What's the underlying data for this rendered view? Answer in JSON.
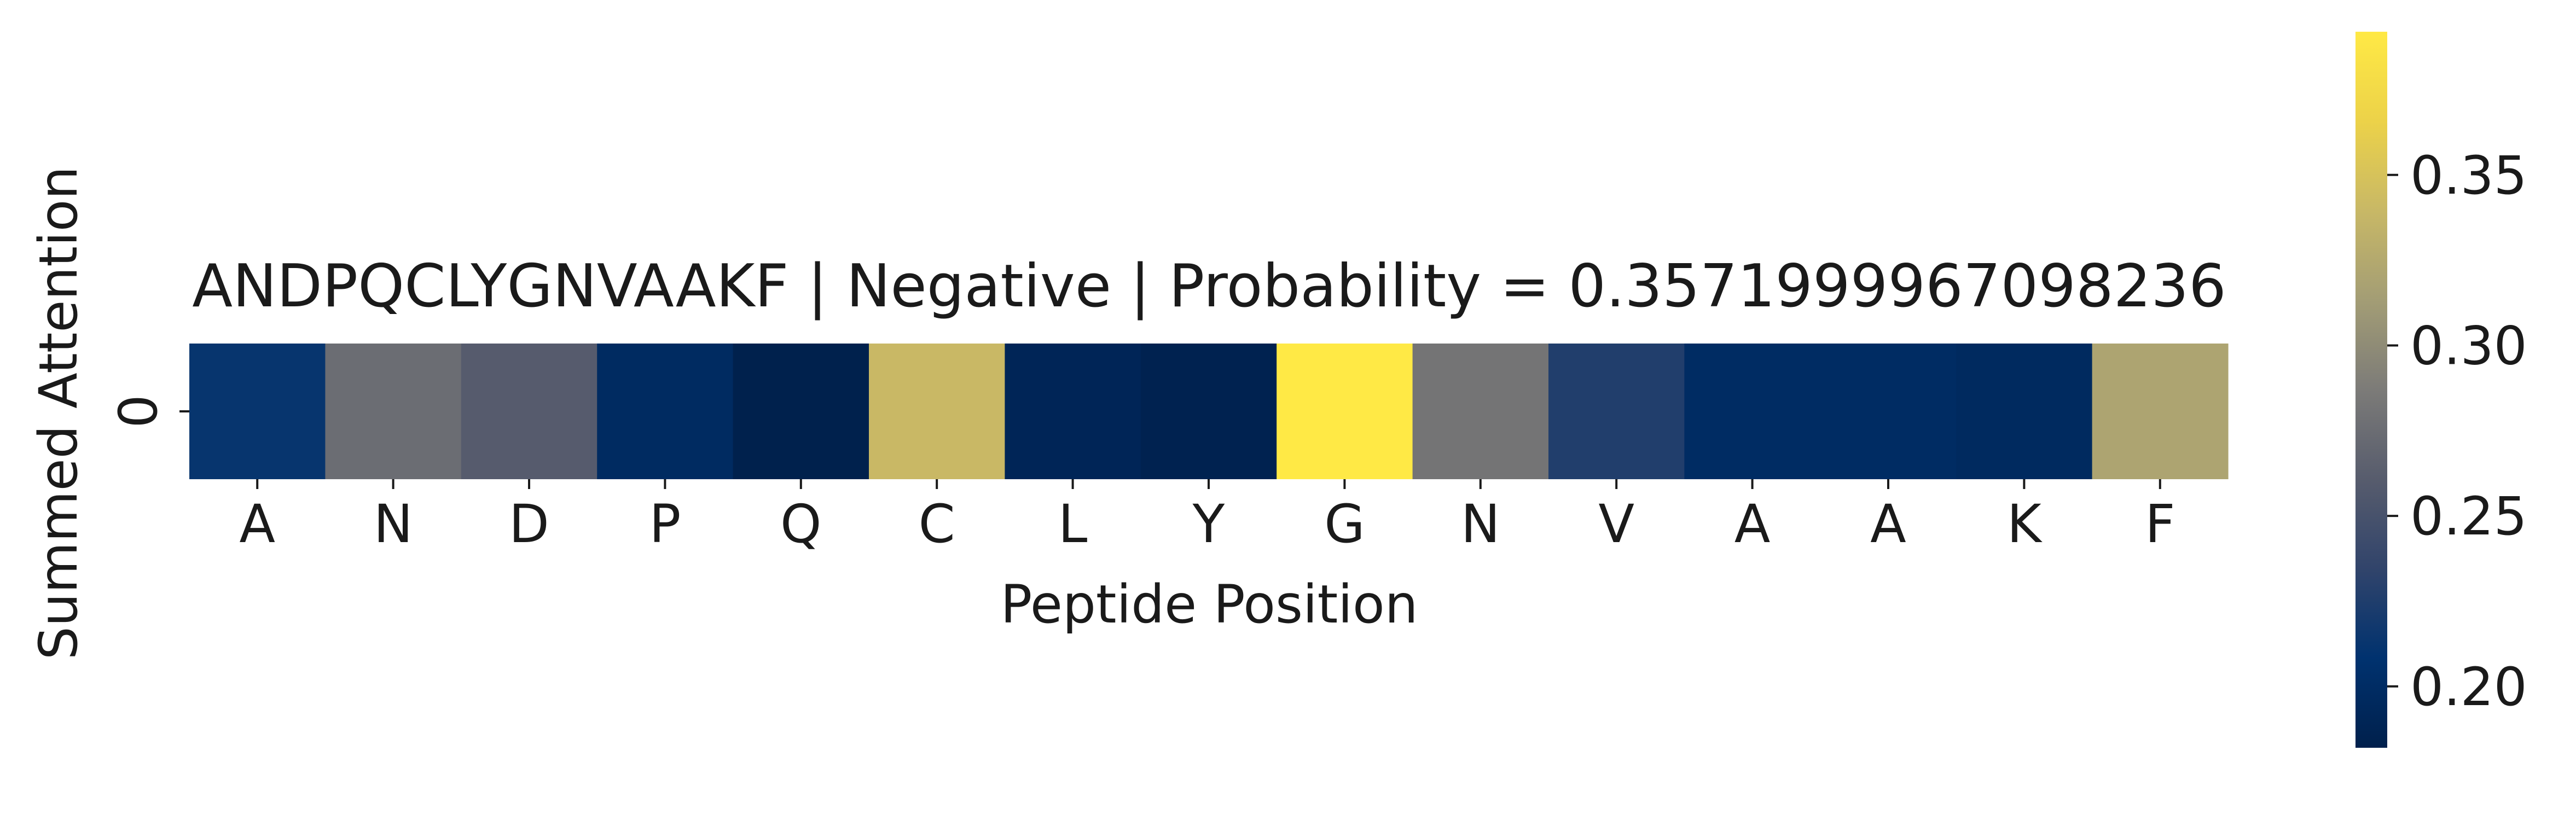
{
  "chart_data": {
    "type": "heatmap",
    "title": "ANDPQCLYGNVAAKF | Negative | Probability = 0.3571999967098236",
    "xlabel": "Peptide Position",
    "ylabel": "Summed Attention",
    "x_tick_labels": [
      "A",
      "N",
      "D",
      "P",
      "Q",
      "C",
      "L",
      "Y",
      "G",
      "N",
      "V",
      "A",
      "A",
      "K",
      "F"
    ],
    "y_tick_labels": [
      "0"
    ],
    "values": [
      [
        0.212,
        0.275,
        0.26,
        0.198,
        0.183,
        0.34,
        0.19,
        0.185,
        0.392,
        0.281,
        0.226,
        0.199,
        0.199,
        0.196,
        0.32
      ]
    ],
    "colormap": "cividis",
    "colorbar": {
      "vmin": 0.182,
      "vmax": 0.392,
      "ticks": [
        0.2,
        0.25,
        0.3,
        0.35
      ],
      "tick_labels": [
        "0.20",
        "0.25",
        "0.30",
        "0.35"
      ]
    },
    "legend": "colorbar-right",
    "grid": false
  }
}
